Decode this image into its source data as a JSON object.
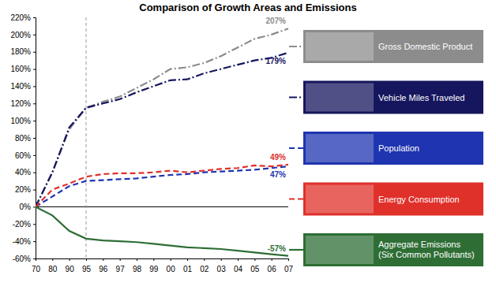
{
  "chart_data": {
    "type": "line",
    "title": "Comparison of Growth Areas and Emissions",
    "categories": [
      "70",
      "80",
      "90",
      "95",
      "96",
      "97",
      "98",
      "99",
      "00",
      "01",
      "02",
      "03",
      "04",
      "05",
      "06",
      "07"
    ],
    "x_markers": [
      "95"
    ],
    "series": [
      {
        "name": "Gross Domestic Product",
        "color": "#8c8c8c",
        "line_style": "dashdot",
        "values": [
          0,
          40,
          90,
          115,
          122,
          128,
          138,
          148,
          160,
          162,
          167,
          175,
          185,
          195,
          200,
          207
        ],
        "value_labels": [
          null,
          null,
          null,
          null,
          null,
          null,
          null,
          null,
          null,
          null,
          null,
          null,
          null,
          null,
          null,
          "207%"
        ]
      },
      {
        "name": "Vehicle Miles Traveled",
        "color": "#16165e",
        "line_style": "dashdot",
        "values": [
          0,
          40,
          92,
          115,
          120,
          125,
          133,
          140,
          147,
          148,
          155,
          160,
          165,
          170,
          173,
          179
        ],
        "value_labels": [
          null,
          null,
          null,
          null,
          null,
          null,
          null,
          null,
          null,
          null,
          null,
          null,
          null,
          null,
          null,
          "179%"
        ]
      },
      {
        "name": "Population",
        "color": "#1e34b0",
        "line_style": "dashed",
        "values": [
          0,
          12,
          24,
          30,
          31,
          32,
          33,
          35,
          37,
          38,
          40,
          41,
          42,
          43,
          45,
          47
        ],
        "value_labels": [
          null,
          null,
          null,
          null,
          null,
          null,
          null,
          null,
          null,
          null,
          null,
          null,
          null,
          null,
          null,
          "47%"
        ]
      },
      {
        "name": "Energy Consumption",
        "color": "#e0302a",
        "line_style": "dashed",
        "values": [
          0,
          20,
          27,
          35,
          38,
          39,
          39,
          40,
          42,
          40,
          42,
          44,
          45,
          48,
          47,
          49
        ],
        "value_labels": [
          null,
          null,
          null,
          null,
          null,
          null,
          null,
          null,
          null,
          null,
          null,
          null,
          null,
          null,
          null,
          "49%"
        ]
      },
      {
        "name": "Aggregate Emissions (Six Common Pollutants)",
        "color": "#2e6e35",
        "line_style": "solid",
        "values": [
          0,
          -10,
          -28,
          -37,
          -39,
          -40,
          -41,
          -43,
          -45,
          -47,
          -48,
          -49,
          -51,
          -53,
          -55,
          -57
        ],
        "value_labels": [
          null,
          null,
          null,
          null,
          null,
          null,
          null,
          null,
          null,
          null,
          null,
          null,
          null,
          null,
          null,
          "-57%"
        ]
      }
    ],
    "ylim": [
      -60,
      220
    ],
    "yticks": [
      {
        "value": -60,
        "label": "-60%"
      },
      {
        "value": -40,
        "label": "-40%"
      },
      {
        "value": -20,
        "label": "-20%"
      },
      {
        "value": 0,
        "label": "0%"
      },
      {
        "value": 20,
        "label": "20%"
      },
      {
        "value": 40,
        "label": "40%"
      },
      {
        "value": 60,
        "label": "60%"
      },
      {
        "value": 80,
        "label": "80%"
      },
      {
        "value": 100,
        "label": "100%"
      },
      {
        "value": 120,
        "label": "120%"
      },
      {
        "value": 140,
        "label": "140%"
      },
      {
        "value": 160,
        "label": "160%"
      },
      {
        "value": 180,
        "label": "180%"
      },
      {
        "value": 200,
        "label": "200%"
      },
      {
        "value": 220,
        "label": "220%"
      }
    ],
    "grid": false,
    "legend": "right",
    "data_labels": true
  }
}
